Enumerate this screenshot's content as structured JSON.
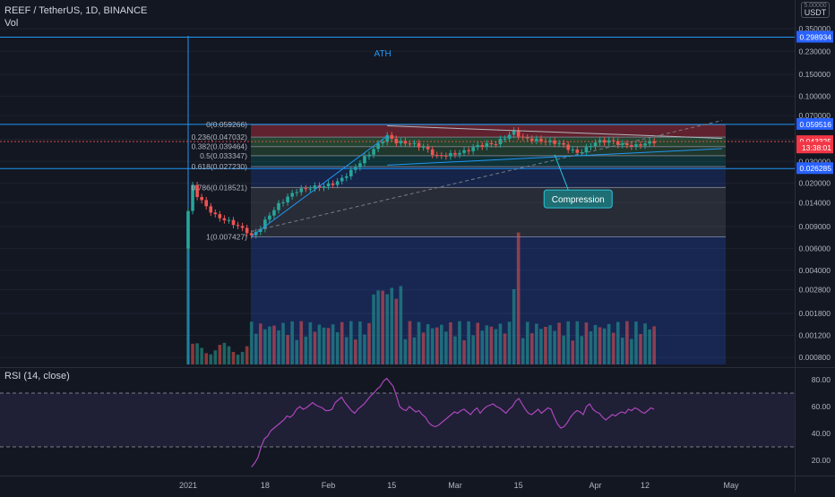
{
  "header": {
    "symbol_line": "REEF / TetherUS, 1D, BINANCE",
    "vol_label": "Vol"
  },
  "currency": {
    "top": "5.00000",
    "label": "USDT"
  },
  "rsi_title": "RSI (14, close)",
  "chart_data": {
    "type": "candlestick",
    "price_scale": "log",
    "price_ticks": [
      "0.350000",
      "0.230000",
      "0.150000",
      "0.100000",
      "0.070000",
      "0.045000",
      "0.030000",
      "0.020000",
      "0.014000",
      "0.009000",
      "0.006000",
      "0.004000",
      "0.002800",
      "0.001800",
      "0.001200",
      "0.000800"
    ],
    "price_badges": [
      {
        "label": "0.298934",
        "color": "#2962ff"
      },
      {
        "label": "0.059516",
        "color": "#2962ff"
      },
      {
        "label": "0.043325",
        "color": "#f23645"
      },
      {
        "label": "13:38:01",
        "color": "#f23645"
      },
      {
        "label": "0.026285",
        "color": "#2962ff"
      }
    ],
    "horizontal_levels": [
      0.298934,
      0.059516,
      0.026285
    ],
    "fib_levels": [
      {
        "ratio": "0",
        "label": "0(0.059266)",
        "price": 0.059266
      },
      {
        "ratio": "0.236",
        "label": "0.236(0.047032)",
        "price": 0.047032
      },
      {
        "ratio": "0.382",
        "label": "0.382(0.039464)",
        "price": 0.039464
      },
      {
        "ratio": "0.5",
        "label": "0.5(0.033347)",
        "price": 0.033347
      },
      {
        "ratio": "0.618",
        "label": "0.618(0.027230)",
        "price": 0.02723
      },
      {
        "ratio": "0.786",
        "label": "0.786(0.018521)",
        "price": 0.018521
      },
      {
        "ratio": "1",
        "label": "1(0.007427)",
        "price": 0.007427
      }
    ],
    "x_ticks": [
      "2021",
      "18",
      "Feb",
      "15",
      "Mar",
      "15",
      "Apr",
      "12",
      "May"
    ],
    "rsi_ticks": [
      "80.00",
      "60.00",
      "40.00",
      "20.00"
    ],
    "rsi_bands": [
      70,
      30
    ],
    "rsi_values": [
      15,
      18,
      22,
      30,
      36,
      38,
      42,
      44,
      46,
      48,
      50,
      53,
      52,
      54,
      58,
      60,
      58,
      59,
      61,
      63,
      61,
      60,
      59,
      57,
      57,
      58,
      63,
      65,
      67,
      63,
      60,
      57,
      55,
      58,
      60,
      62,
      65,
      68,
      70,
      73,
      75,
      79,
      81,
      78,
      75,
      68,
      60,
      58,
      57,
      60,
      58,
      56,
      57,
      54,
      52,
      48,
      46,
      45,
      46,
      48,
      50,
      52,
      54,
      56,
      55,
      57,
      58,
      56,
      54,
      57,
      59,
      55,
      58,
      60,
      61,
      62,
      60,
      59,
      57,
      55,
      58,
      60,
      64,
      66,
      62,
      58,
      55,
      54,
      56,
      58,
      55,
      57,
      59,
      58,
      52,
      47,
      44,
      45,
      48,
      52,
      55,
      57,
      56,
      54,
      60,
      62,
      58,
      56,
      55,
      52,
      50,
      52,
      54,
      53,
      55,
      56,
      55,
      58,
      57,
      59,
      58,
      56,
      55,
      57,
      59,
      58
    ],
    "annotations": [
      {
        "text": "ATH"
      },
      {
        "text": "Compression"
      }
    ]
  }
}
